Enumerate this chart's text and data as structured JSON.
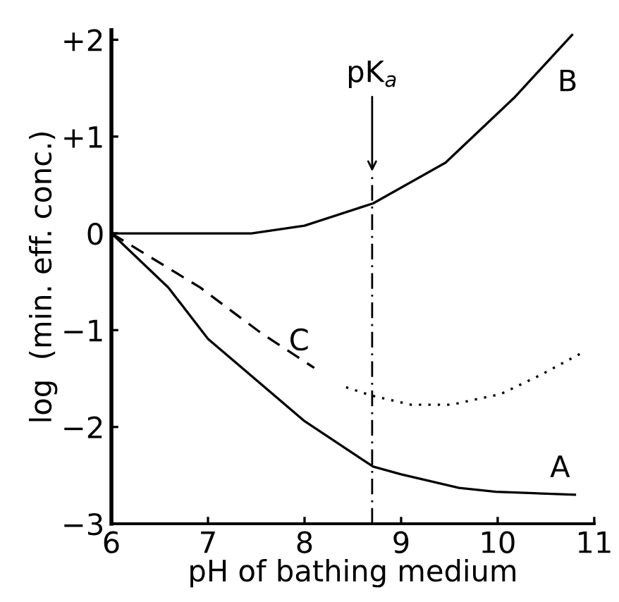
{
  "chart_data": {
    "type": "line",
    "xlabel": "pH of bathing medium",
    "ylabel": "log  (min. eff. conc.)",
    "xlim": [
      6,
      11
    ],
    "xticks": [
      6,
      7,
      8,
      9,
      10,
      11
    ],
    "ylim": [
      -3,
      2.1
    ],
    "yticks": [
      {
        "value": 2,
        "label": "+2"
      },
      {
        "value": 1,
        "label": "+1"
      },
      0,
      {
        "value": -1,
        "label": "−1"
      },
      {
        "value": -2,
        "label": "−2"
      },
      {
        "value": -3,
        "label": "−3"
      }
    ],
    "grid": false,
    "legend": false,
    "marker": "none",
    "series": [
      {
        "name": "A",
        "color": "#000000",
        "line_style": "solid",
        "x": [
          6,
          6.59,
          7.0,
          8.0,
          8.71,
          9.0,
          9.6,
          9.98,
          10.8
        ],
        "values": [
          0,
          -0.56,
          -1.09,
          -1.94,
          -2.41,
          -2.49,
          -2.63,
          -2.67,
          -2.7
        ]
      },
      {
        "name": "B",
        "color": "#000000",
        "line_style": "solid",
        "x": [
          6,
          7.45,
          8.0,
          8.71,
          9.46,
          10.17,
          10.77
        ],
        "values": [
          0,
          0,
          0.08,
          0.31,
          0.73,
          1.4,
          2.05
        ]
      },
      {
        "name": "C",
        "color": "#000000",
        "line_style": "dashed",
        "x": [
          6,
          6.92,
          7.55,
          8.1
        ],
        "values": [
          0,
          -0.56,
          -1.03,
          -1.39
        ]
      },
      {
        "color": "#000000",
        "line_style": "dotted",
        "x": [
          8.43,
          8.71,
          9.1,
          9.52,
          10.03,
          10.45,
          10.88
        ],
        "values": [
          -1.59,
          -1.68,
          -1.77,
          -1.77,
          -1.66,
          -1.46,
          -1.23
        ]
      }
    ],
    "ref_lines": [
      {
        "axis": "x",
        "value": 8.7,
        "label": "pK$_{a}$",
        "line_style": "dashdot",
        "color": "#000000"
      }
    ]
  }
}
